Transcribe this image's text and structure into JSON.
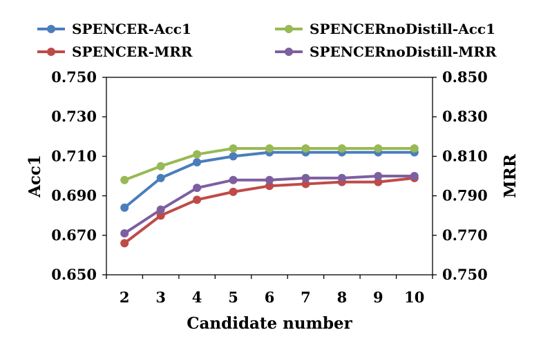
{
  "chart_data": {
    "type": "line",
    "title": "",
    "xlabel": "Candidate number",
    "ylabel_left": "Acc1",
    "ylabel_right": "MRR",
    "x": [
      2,
      3,
      4,
      5,
      6,
      7,
      8,
      9,
      10
    ],
    "x_tick_labels": [
      "2",
      "3",
      "4",
      "5",
      "6",
      "7",
      "8",
      "9",
      "10"
    ],
    "ylim_left": [
      0.65,
      0.75
    ],
    "ylim_right": [
      0.75,
      0.85
    ],
    "y_ticks_left": [
      "0.650",
      "0.670",
      "0.690",
      "0.710",
      "0.730",
      "0.750"
    ],
    "y_ticks_right": [
      "0.750",
      "0.770",
      "0.790",
      "0.810",
      "0.830",
      "0.850"
    ],
    "grid": false,
    "legend_position": "top",
    "series": [
      {
        "name": "SPENCER-Acc1",
        "axis": "left",
        "color": "#4a7ebb",
        "values": [
          0.684,
          0.699,
          0.707,
          0.71,
          0.712,
          0.712,
          0.712,
          0.712,
          0.712
        ]
      },
      {
        "name": "SPENCER-MRR",
        "axis": "right",
        "color": "#be4b48",
        "values": [
          0.766,
          0.78,
          0.788,
          0.792,
          0.795,
          0.796,
          0.797,
          0.797,
          0.799
        ]
      },
      {
        "name": "SPENCERnoDistill-Acc1",
        "axis": "left",
        "color": "#98b954",
        "values": [
          0.698,
          0.705,
          0.711,
          0.714,
          0.714,
          0.714,
          0.714,
          0.714,
          0.714
        ]
      },
      {
        "name": "SPENCERnoDistill-MRR",
        "axis": "right",
        "color": "#7d5fa0",
        "values": [
          0.771,
          0.783,
          0.794,
          0.798,
          0.798,
          0.799,
          0.799,
          0.8,
          0.8
        ]
      }
    ]
  }
}
